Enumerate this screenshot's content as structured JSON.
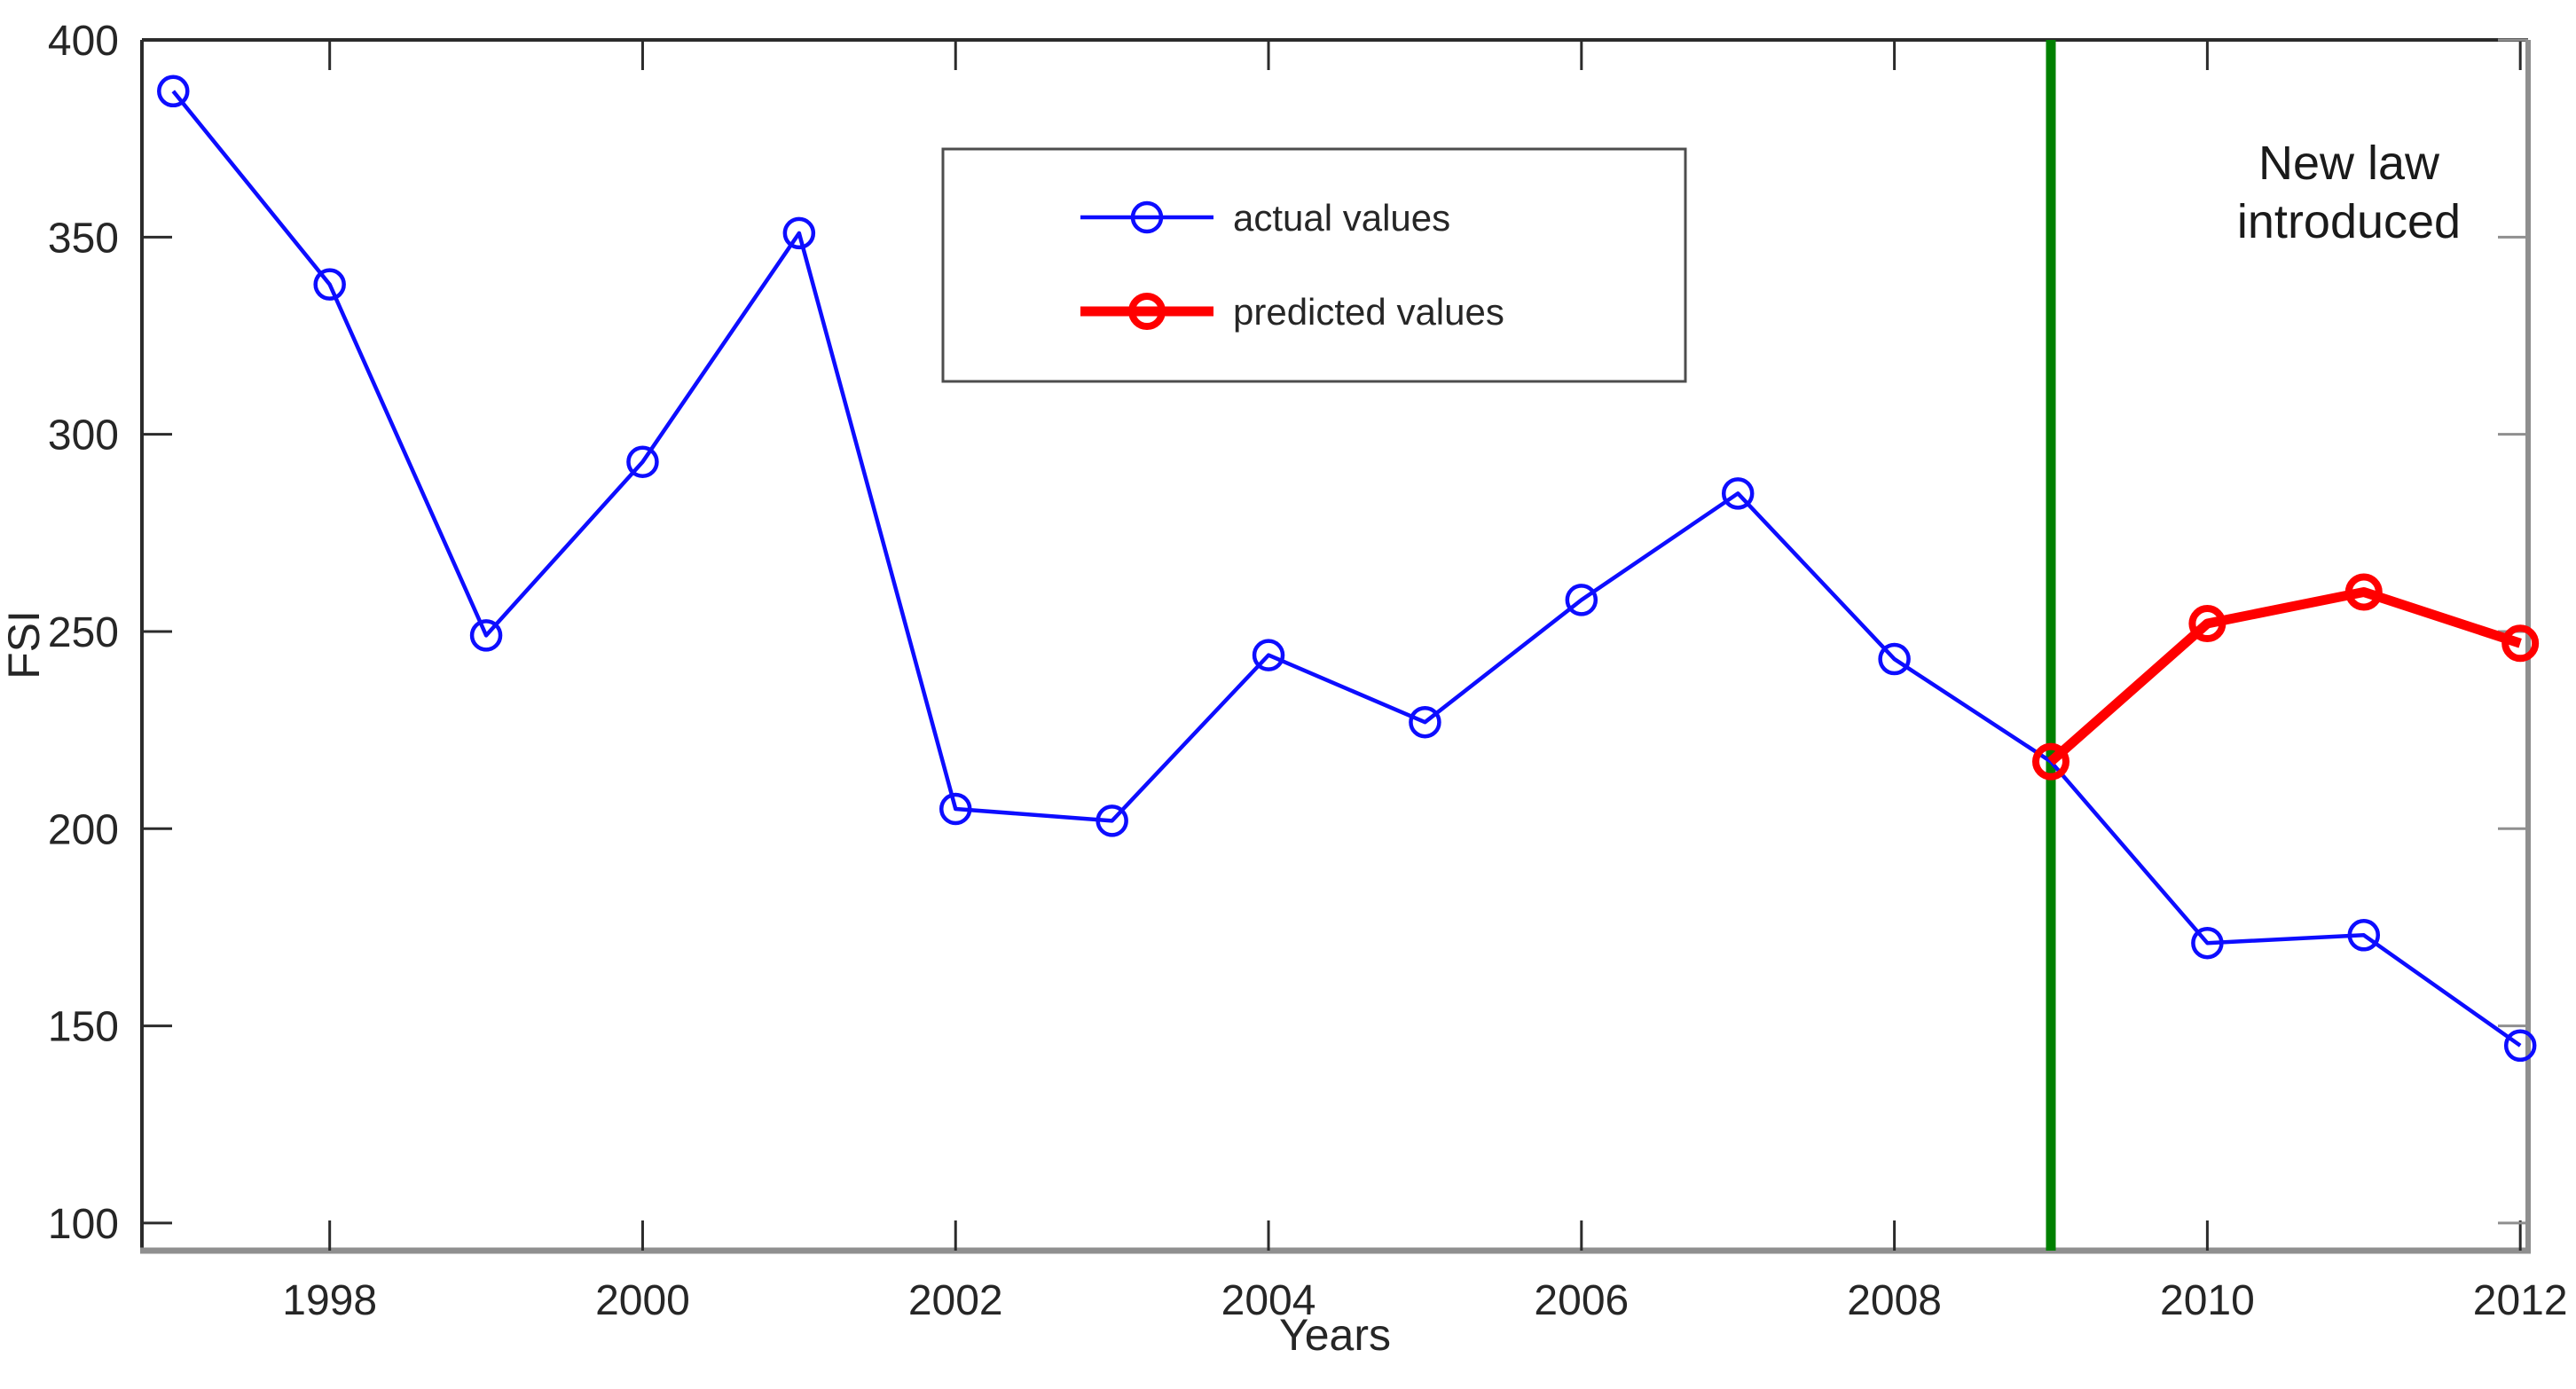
{
  "figure": {
    "background": "#ffffff",
    "annotation": {
      "line1": "New law",
      "line2": "introduced"
    },
    "legend": {
      "items": [
        {
          "label": "actual values",
          "color": "#0d0dff",
          "weight": "thin"
        },
        {
          "label": "predicted values",
          "color": "#ff0000",
          "weight": "thick"
        }
      ]
    }
  },
  "chart_data": {
    "type": "line",
    "title": "",
    "xlabel": "Years",
    "ylabel": "FSI",
    "xlim": [
      1996.8,
      2012.05
    ],
    "ylim": [
      93,
      400
    ],
    "x_ticks": [
      1998,
      2000,
      2002,
      2004,
      2006,
      2008,
      2010,
      2012
    ],
    "y_ticks": [
      100,
      150,
      200,
      250,
      300,
      350,
      400
    ],
    "grid": false,
    "legend_position": "upper-center-left",
    "series": [
      {
        "name": "actual values",
        "color": "#0d0dff",
        "weight": "thin",
        "marker": "o",
        "x": [
          1997,
          1998,
          1999,
          2000,
          2001,
          2002,
          2003,
          2004,
          2005,
          2006,
          2007,
          2008,
          2009,
          2010,
          2011,
          2012
        ],
        "y": [
          387,
          338,
          249,
          293,
          351,
          205,
          202,
          244,
          227,
          258,
          285,
          243,
          217,
          171,
          173,
          145
        ]
      },
      {
        "name": "predicted values",
        "color": "#ff0000",
        "weight": "thick",
        "marker": "o",
        "x": [
          2009,
          2010,
          2011,
          2012
        ],
        "y": [
          217,
          252,
          260,
          247
        ]
      }
    ],
    "event_line": {
      "x": 2009,
      "color": "#008000",
      "label": "New law introduced"
    },
    "axis_colors": {
      "major": "#2b2b2b",
      "minor": "#8f8f8f"
    }
  }
}
